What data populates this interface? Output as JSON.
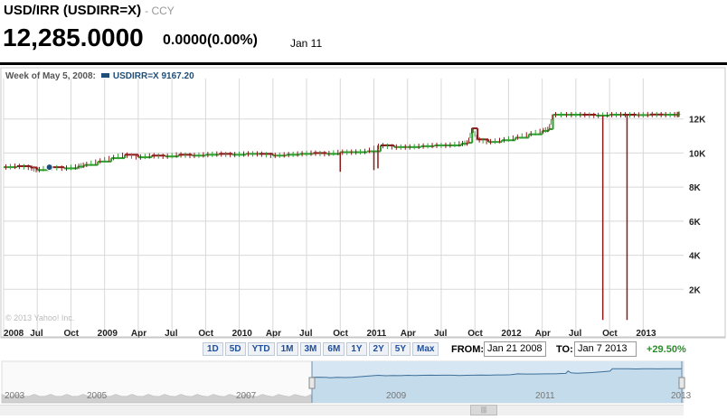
{
  "header": {
    "title": "USD/IRR (USDIRR=X)",
    "subtitle": "- CCY",
    "price": "12,285.0000",
    "change": "0.0000(0.00%)",
    "date": "Jan 11"
  },
  "legend": {
    "week_label": "Week of May 5, 2008:",
    "series_label": "USDIRR=X 9167.20"
  },
  "copyright": "© 2013 Yahoo! Inc.",
  "controls": {
    "ranges": [
      "1D",
      "5D",
      "YTD",
      "1M",
      "3M",
      "6M",
      "1Y",
      "2Y",
      "5Y",
      "Max"
    ],
    "from_label": "FROM:",
    "from_value": "Jan 21 2008",
    "to_label": "TO:",
    "to_value": "Jan 7 2013",
    "pct_change": "+29.50%"
  },
  "navigator": {
    "years": [
      "2003",
      "2005",
      "2007",
      "2009",
      "2011",
      "2013"
    ]
  },
  "colors": {
    "up": "#2e9e2e",
    "down": "#8b1a1a",
    "series": "#1f4e79",
    "grid": "#d8d8d8",
    "nav_fill": "#d6e6f2"
  },
  "chart_data": {
    "type": "line",
    "x_tick_labels": [
      "2008",
      "Jul",
      "Oct",
      "2009",
      "Apr",
      "Jul",
      "Oct",
      "2010",
      "Apr",
      "Jul",
      "Oct",
      "2011",
      "Apr",
      "Jul",
      "Oct",
      "2012",
      "Apr",
      "Jul",
      "Oct",
      "2013"
    ],
    "y_tick_labels": [
      "2K",
      "4K",
      "6K",
      "8K",
      "10K",
      "12K"
    ],
    "y_ticks": [
      2000,
      4000,
      6000,
      8000,
      10000,
      12000
    ],
    "ylim": [
      0,
      14000
    ],
    "xlim": [
      2008.0,
      2013.05
    ],
    "grid": true,
    "series": [
      {
        "points": [
          [
            2008.0,
            9170
          ],
          [
            2008.1,
            9230
          ],
          [
            2008.2,
            9150
          ],
          [
            2008.25,
            9000
          ],
          [
            2008.34,
            9167
          ],
          [
            2008.45,
            9100
          ],
          [
            2008.55,
            9200
          ],
          [
            2008.6,
            9300
          ],
          [
            2008.7,
            9500
          ],
          [
            2008.8,
            9700
          ],
          [
            2008.9,
            9900
          ],
          [
            2009.0,
            9750
          ],
          [
            2009.1,
            9850
          ],
          [
            2009.2,
            9800
          ],
          [
            2009.3,
            9900
          ],
          [
            2009.4,
            9850
          ],
          [
            2009.5,
            9900
          ],
          [
            2009.6,
            9950
          ],
          [
            2009.7,
            9900
          ],
          [
            2009.8,
            9950
          ],
          [
            2009.9,
            9950
          ],
          [
            2010.0,
            9850
          ],
          [
            2010.1,
            9900
          ],
          [
            2010.2,
            9950
          ],
          [
            2010.3,
            10000
          ],
          [
            2010.4,
            9950
          ],
          [
            2010.5,
            10050
          ],
          [
            2010.6,
            10050
          ],
          [
            2010.7,
            10100
          ],
          [
            2010.8,
            10450
          ],
          [
            2010.9,
            10350
          ],
          [
            2011.0,
            10350
          ],
          [
            2011.1,
            10400
          ],
          [
            2011.2,
            10450
          ],
          [
            2011.3,
            10450
          ],
          [
            2011.4,
            10550
          ],
          [
            2011.45,
            10600
          ],
          [
            2011.48,
            11450
          ],
          [
            2011.52,
            10800
          ],
          [
            2011.6,
            10650
          ],
          [
            2011.7,
            10750
          ],
          [
            2011.8,
            10900
          ],
          [
            2011.9,
            11100
          ],
          [
            2012.0,
            11300
          ],
          [
            2012.05,
            11400
          ],
          [
            2012.08,
            12250
          ],
          [
            2012.2,
            12250
          ],
          [
            2012.3,
            12250
          ],
          [
            2012.4,
            12200
          ],
          [
            2012.5,
            12250
          ],
          [
            2012.6,
            12250
          ],
          [
            2012.7,
            12230
          ],
          [
            2012.8,
            12260
          ],
          [
            2012.9,
            12250
          ],
          [
            2013.0,
            12250
          ],
          [
            2013.02,
            12285
          ]
        ]
      }
    ],
    "outliers": [
      {
        "x": 2010.5,
        "low": 8900
      },
      {
        "x": 2010.75,
        "low": 9000
      },
      {
        "x": 2010.78,
        "low": 9100
      },
      {
        "x": 2012.45,
        "low": 200
      },
      {
        "x": 2012.63,
        "low": 200
      }
    ],
    "highlight_point": {
      "x": 2008.34,
      "y": 9167
    }
  }
}
